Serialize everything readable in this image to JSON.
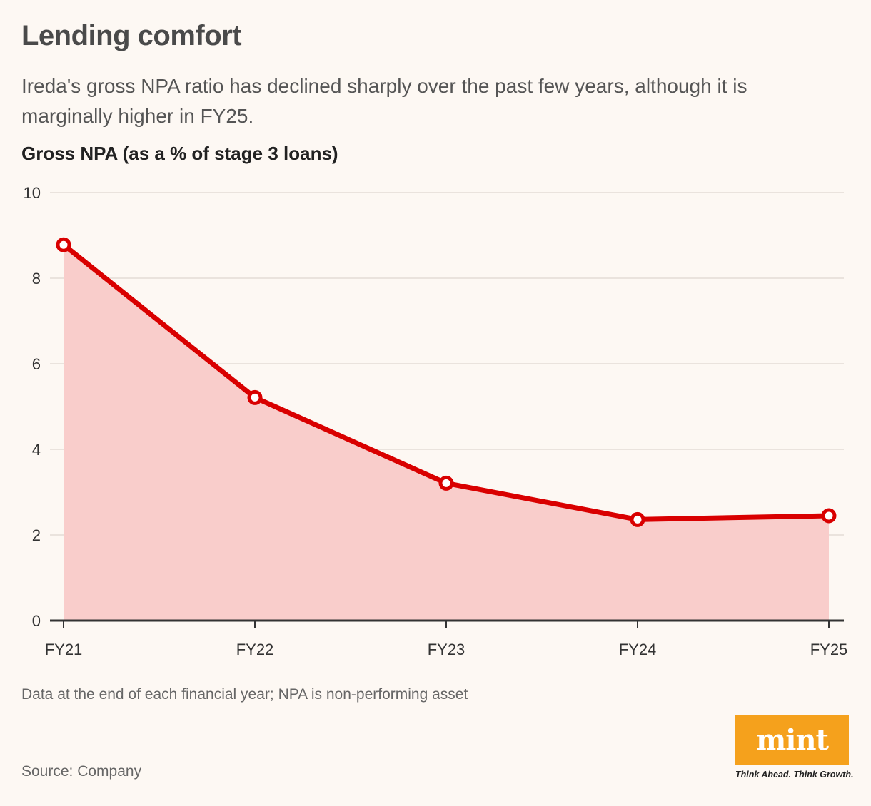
{
  "header": {
    "title": "Lending comfort",
    "subtitle": "Ireda's gross NPA ratio has declined sharply over the past few years, although it is marginally higher in FY25."
  },
  "chart_data": {
    "type": "area",
    "title": "Gross NPA (as a % of stage 3 loans)",
    "categories": [
      "FY21",
      "FY22",
      "FY23",
      "FY24",
      "FY25"
    ],
    "values": [
      8.78,
      5.21,
      3.21,
      2.36,
      2.45
    ],
    "xlabel": "",
    "ylabel": "",
    "ylim": [
      0,
      10
    ],
    "yticks": [
      0,
      2,
      4,
      6,
      8,
      10
    ],
    "grid": true,
    "legend": "none",
    "colors": {
      "line": "#d90000",
      "fill": "#f9cdcb",
      "grid": "#e3dcd6",
      "axis": "#333333"
    }
  },
  "footer": {
    "note": "Data at the end of each financial year; NPA is non-performing asset",
    "source": "Source: Company",
    "logo_text": "mint",
    "tagline": "Think Ahead. Think Growth.",
    "logo_color": "#f5a11c"
  }
}
